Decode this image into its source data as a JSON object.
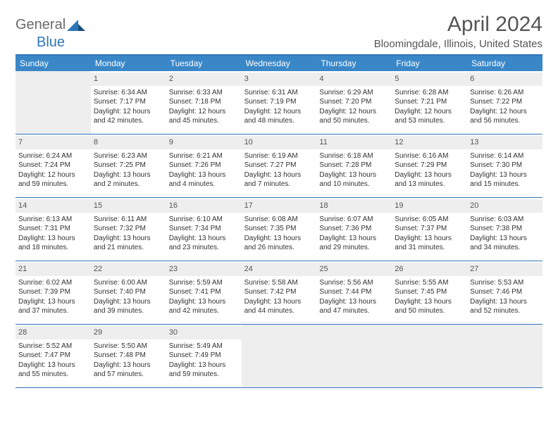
{
  "logo": {
    "part1": "General",
    "part2": "Blue"
  },
  "title": "April 2024",
  "location": "Bloomingdale, Illinois, United States",
  "colors": {
    "accent": "#3a87c8",
    "border": "#2f76b8",
    "gray_bg": "#eeeeee",
    "text": "#333333",
    "title_text": "#555555"
  },
  "day_headers": [
    "Sunday",
    "Monday",
    "Tuesday",
    "Wednesday",
    "Thursday",
    "Friday",
    "Saturday"
  ],
  "leading_blanks": 1,
  "trailing_blanks": 4,
  "days": [
    {
      "n": 1,
      "sunrise": "6:34 AM",
      "sunset": "7:17 PM",
      "dl": "12 hours and 42 minutes."
    },
    {
      "n": 2,
      "sunrise": "6:33 AM",
      "sunset": "7:18 PM",
      "dl": "12 hours and 45 minutes."
    },
    {
      "n": 3,
      "sunrise": "6:31 AM",
      "sunset": "7:19 PM",
      "dl": "12 hours and 48 minutes."
    },
    {
      "n": 4,
      "sunrise": "6:29 AM",
      "sunset": "7:20 PM",
      "dl": "12 hours and 50 minutes."
    },
    {
      "n": 5,
      "sunrise": "6:28 AM",
      "sunset": "7:21 PM",
      "dl": "12 hours and 53 minutes."
    },
    {
      "n": 6,
      "sunrise": "6:26 AM",
      "sunset": "7:22 PM",
      "dl": "12 hours and 56 minutes."
    },
    {
      "n": 7,
      "sunrise": "6:24 AM",
      "sunset": "7:24 PM",
      "dl": "12 hours and 59 minutes."
    },
    {
      "n": 8,
      "sunrise": "6:23 AM",
      "sunset": "7:25 PM",
      "dl": "13 hours and 2 minutes."
    },
    {
      "n": 9,
      "sunrise": "6:21 AM",
      "sunset": "7:26 PM",
      "dl": "13 hours and 4 minutes."
    },
    {
      "n": 10,
      "sunrise": "6:19 AM",
      "sunset": "7:27 PM",
      "dl": "13 hours and 7 minutes."
    },
    {
      "n": 11,
      "sunrise": "6:18 AM",
      "sunset": "7:28 PM",
      "dl": "13 hours and 10 minutes."
    },
    {
      "n": 12,
      "sunrise": "6:16 AM",
      "sunset": "7:29 PM",
      "dl": "13 hours and 13 minutes."
    },
    {
      "n": 13,
      "sunrise": "6:14 AM",
      "sunset": "7:30 PM",
      "dl": "13 hours and 15 minutes."
    },
    {
      "n": 14,
      "sunrise": "6:13 AM",
      "sunset": "7:31 PM",
      "dl": "13 hours and 18 minutes."
    },
    {
      "n": 15,
      "sunrise": "6:11 AM",
      "sunset": "7:32 PM",
      "dl": "13 hours and 21 minutes."
    },
    {
      "n": 16,
      "sunrise": "6:10 AM",
      "sunset": "7:34 PM",
      "dl": "13 hours and 23 minutes."
    },
    {
      "n": 17,
      "sunrise": "6:08 AM",
      "sunset": "7:35 PM",
      "dl": "13 hours and 26 minutes."
    },
    {
      "n": 18,
      "sunrise": "6:07 AM",
      "sunset": "7:36 PM",
      "dl": "13 hours and 29 minutes."
    },
    {
      "n": 19,
      "sunrise": "6:05 AM",
      "sunset": "7:37 PM",
      "dl": "13 hours and 31 minutes."
    },
    {
      "n": 20,
      "sunrise": "6:03 AM",
      "sunset": "7:38 PM",
      "dl": "13 hours and 34 minutes."
    },
    {
      "n": 21,
      "sunrise": "6:02 AM",
      "sunset": "7:39 PM",
      "dl": "13 hours and 37 minutes."
    },
    {
      "n": 22,
      "sunrise": "6:00 AM",
      "sunset": "7:40 PM",
      "dl": "13 hours and 39 minutes."
    },
    {
      "n": 23,
      "sunrise": "5:59 AM",
      "sunset": "7:41 PM",
      "dl": "13 hours and 42 minutes."
    },
    {
      "n": 24,
      "sunrise": "5:58 AM",
      "sunset": "7:42 PM",
      "dl": "13 hours and 44 minutes."
    },
    {
      "n": 25,
      "sunrise": "5:56 AM",
      "sunset": "7:44 PM",
      "dl": "13 hours and 47 minutes."
    },
    {
      "n": 26,
      "sunrise": "5:55 AM",
      "sunset": "7:45 PM",
      "dl": "13 hours and 50 minutes."
    },
    {
      "n": 27,
      "sunrise": "5:53 AM",
      "sunset": "7:46 PM",
      "dl": "13 hours and 52 minutes."
    },
    {
      "n": 28,
      "sunrise": "5:52 AM",
      "sunset": "7:47 PM",
      "dl": "13 hours and 55 minutes."
    },
    {
      "n": 29,
      "sunrise": "5:50 AM",
      "sunset": "7:48 PM",
      "dl": "13 hours and 57 minutes."
    },
    {
      "n": 30,
      "sunrise": "5:49 AM",
      "sunset": "7:49 PM",
      "dl": "13 hours and 59 minutes."
    }
  ],
  "labels": {
    "sunrise": "Sunrise:",
    "sunset": "Sunset:",
    "daylight": "Daylight:"
  }
}
